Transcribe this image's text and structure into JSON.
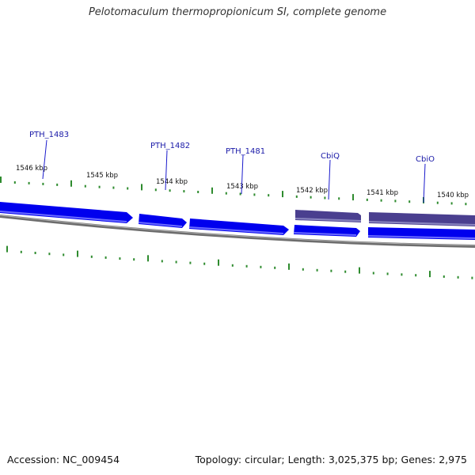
{
  "title": "Pelotomaculum thermopropionicum SI, complete genome",
  "footer": {
    "accession": "Accession: NC_009454",
    "summary": "Topology: circular; Length: 3,025,375 bp; Genes: 2,975"
  },
  "colors": {
    "gene_forward": "#0000ee",
    "gene_highlight": "#4a3f8f",
    "backbone": "#808080",
    "ticks": "#2e8b2e",
    "label_line": "#1a1acc",
    "label_text": "#1a1aa8"
  },
  "tick_labels": [
    "1546 kbp",
    "1545 kbp",
    "1544 kbp",
    "1543 kbp",
    "1542 kbp",
    "1541 kbp",
    "1540 kbp"
  ],
  "genes": [
    {
      "name": "PTH_1483"
    },
    {
      "name": "PTH_1482"
    },
    {
      "name": "PTH_1481"
    },
    {
      "name": "CbiQ"
    },
    {
      "name": "CbiO"
    }
  ]
}
